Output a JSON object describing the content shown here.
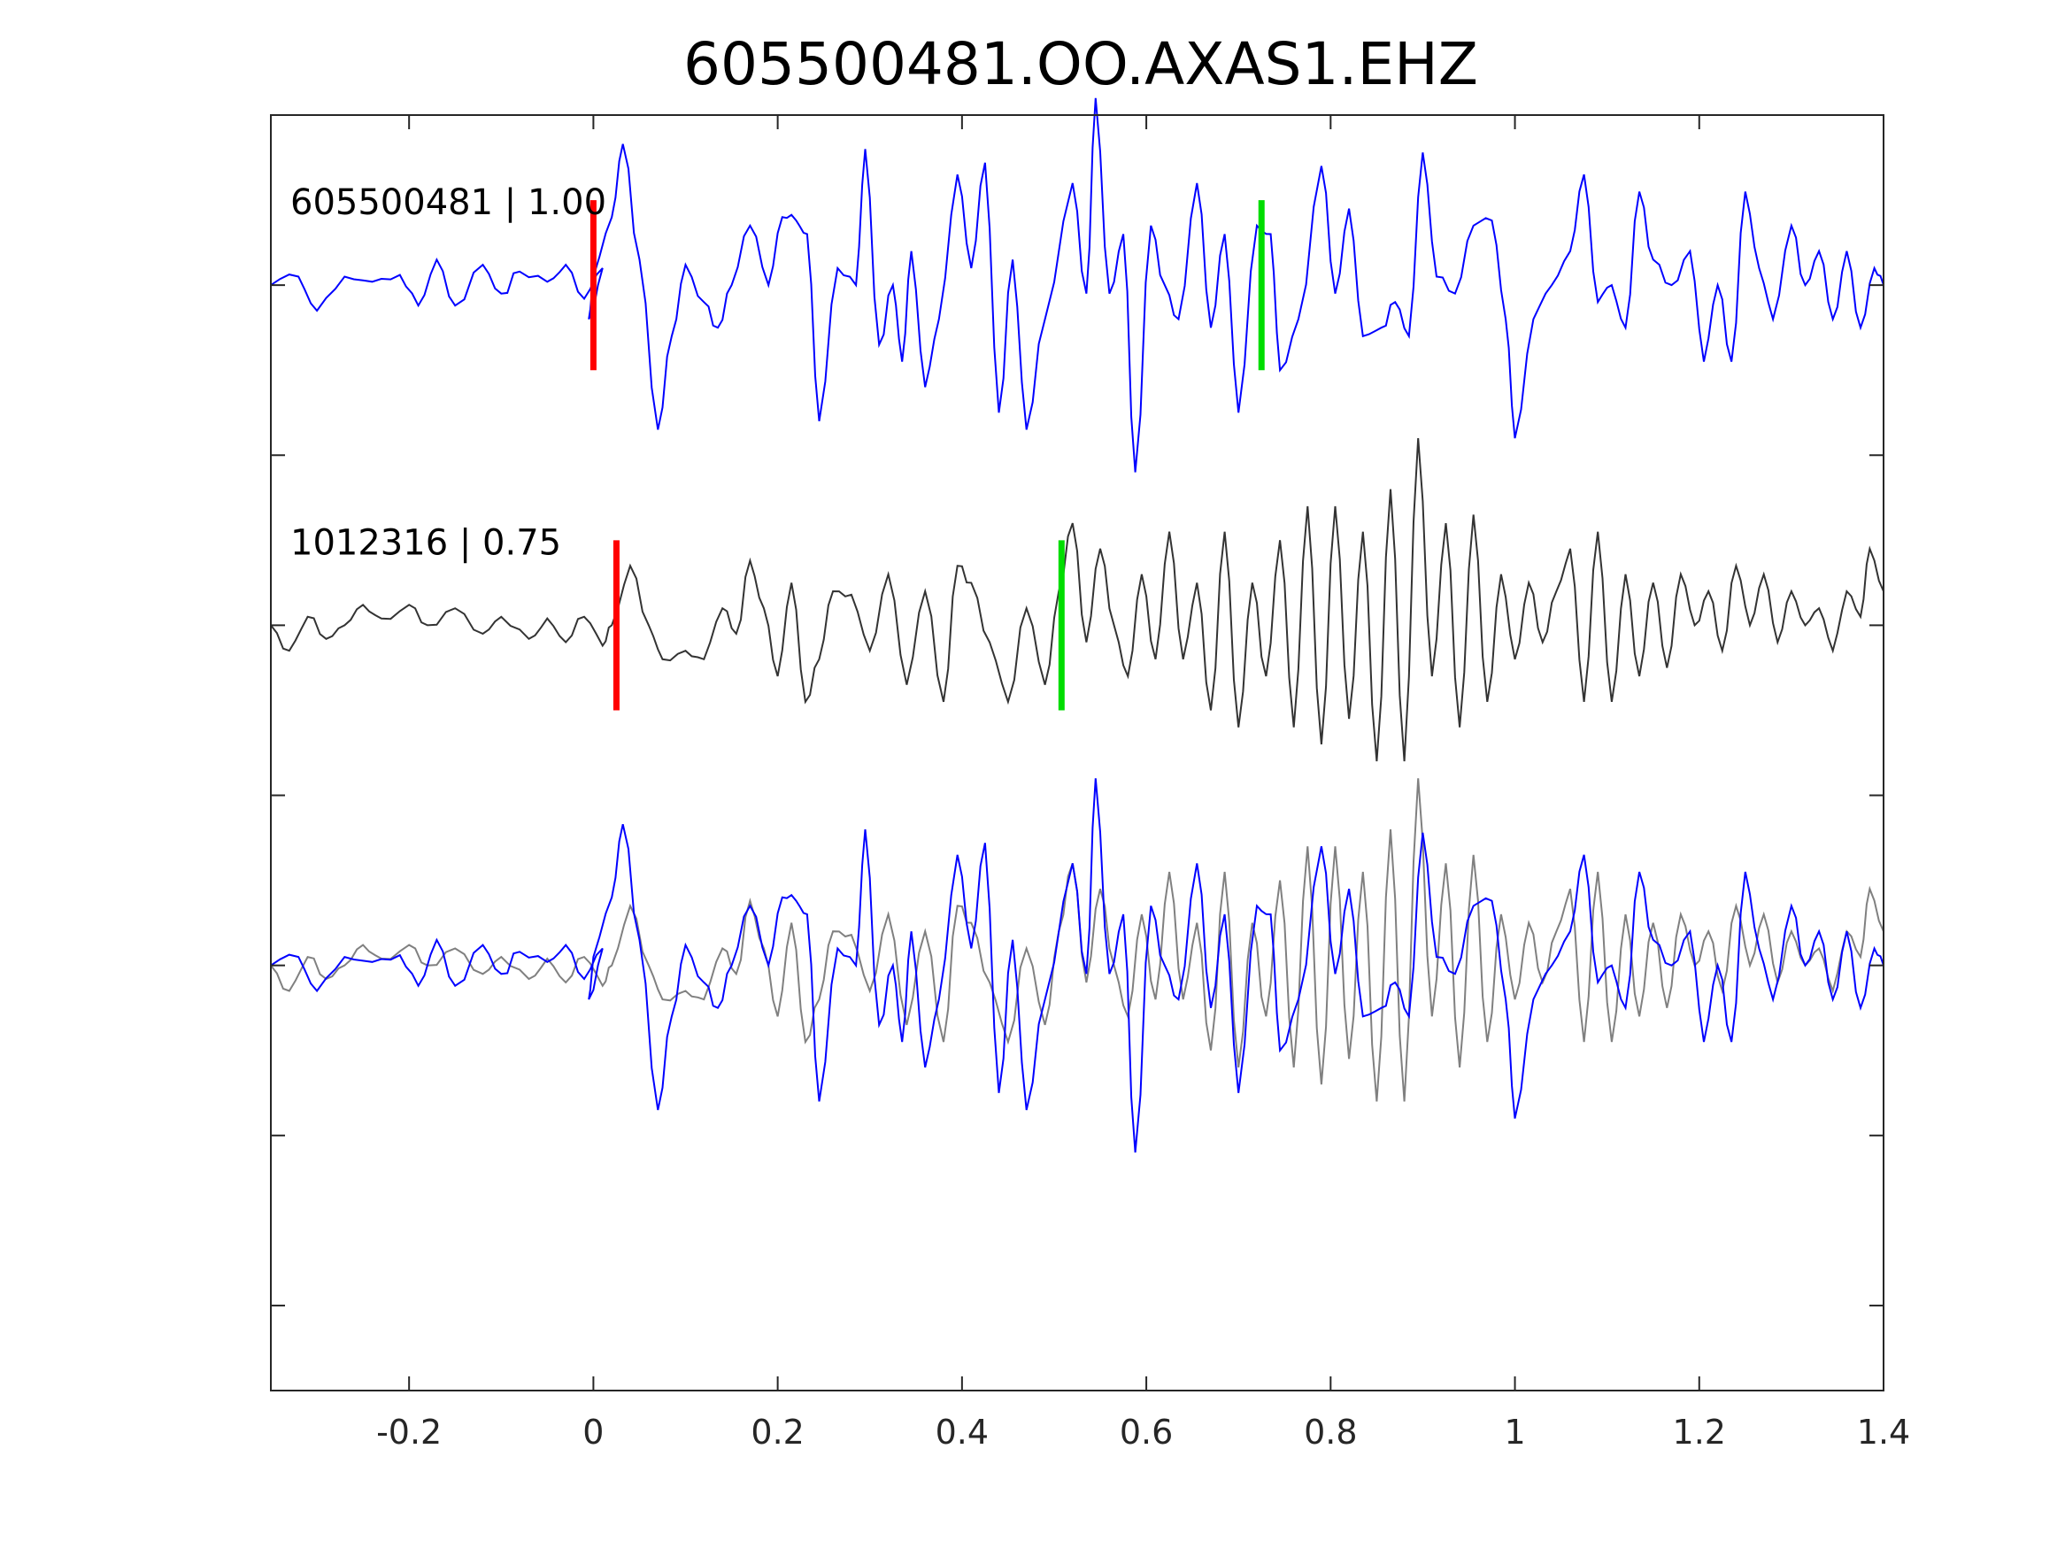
{
  "chart_data": {
    "type": "line",
    "title": "605500481.OO.AXAS1.EHZ",
    "xlabel": "",
    "ylabel": "",
    "xlim": [
      -0.35,
      1.4
    ],
    "xticks": [
      -0.2,
      0,
      0.2,
      0.4,
      0.6,
      0.8,
      1,
      1.2,
      1.4
    ],
    "xtick_labels": [
      "-0.2",
      "0",
      "0.2",
      "0.4",
      "0.6",
      "0.8",
      "1",
      "1.2",
      "1.4"
    ],
    "ylim": [
      -2.5,
      5
    ],
    "yticks": [
      -2,
      -1,
      0,
      1,
      2,
      3,
      4
    ],
    "grid": false,
    "traces": [
      {
        "label": "605500481 | 1.00",
        "offset": 4,
        "color": "#0000ff",
        "p_pick": 0.0,
        "s_pick": 0.725,
        "peaks": [
          [
            -0.35,
            0
          ],
          [
            -0.32,
            0.05
          ],
          [
            -0.3,
            -0.15
          ],
          [
            -0.27,
            0.05
          ],
          [
            -0.24,
            0.02
          ],
          [
            -0.21,
            0.06
          ],
          [
            -0.19,
            -0.12
          ],
          [
            -0.17,
            0.15
          ],
          [
            -0.15,
            -0.12
          ],
          [
            -0.12,
            0.12
          ],
          [
            -0.1,
            -0.05
          ],
          [
            -0.08,
            0.08
          ],
          [
            -0.05,
            0.02
          ],
          [
            -0.03,
            0.12
          ],
          [
            -0.01,
            -0.08
          ],
          [
            0.01,
            0.1
          ],
          [
            -0.005,
            -0.2
          ],
          [
            0.0,
            0.05
          ],
          [
            0.02,
            0.4
          ],
          [
            0.032,
            0.83
          ],
          [
            0.05,
            0.15
          ],
          [
            0.07,
            -0.85
          ],
          [
            0.085,
            -0.3
          ],
          [
            0.1,
            0.12
          ],
          [
            0.12,
            -0.1
          ],
          [
            0.135,
            -0.25
          ],
          [
            0.15,
            0.0
          ],
          [
            0.17,
            0.35
          ],
          [
            0.19,
            0.0
          ],
          [
            0.205,
            0.4
          ],
          [
            0.22,
            0.38
          ],
          [
            0.232,
            0.3
          ],
          [
            0.245,
            -0.8
          ],
          [
            0.265,
            0.1
          ],
          [
            0.285,
            0.0
          ],
          [
            0.295,
            0.8
          ],
          [
            0.31,
            -0.35
          ],
          [
            0.325,
            0.0
          ],
          [
            0.335,
            -0.45
          ],
          [
            0.345,
            0.2
          ],
          [
            0.36,
            -0.6
          ],
          [
            0.375,
            -0.2
          ],
          [
            0.395,
            0.65
          ],
          [
            0.41,
            0.1
          ],
          [
            0.425,
            0.72
          ],
          [
            0.44,
            -0.75
          ],
          [
            0.455,
            0.15
          ],
          [
            0.47,
            -0.85
          ],
          [
            0.49,
            -0.2
          ],
          [
            0.52,
            0.6
          ],
          [
            0.535,
            -0.05
          ],
          [
            0.545,
            1.1
          ],
          [
            0.56,
            -0.05
          ],
          [
            0.575,
            0.3
          ],
          [
            0.588,
            -1.1
          ],
          [
            0.605,
            0.35
          ],
          [
            0.62,
            0.0
          ],
          [
            0.635,
            -0.2
          ],
          [
            0.655,
            0.6
          ],
          [
            0.67,
            -0.25
          ],
          [
            0.685,
            0.3
          ],
          [
            0.7,
            -0.75
          ],
          [
            0.72,
            0.35
          ],
          [
            0.735,
            0.3
          ],
          [
            0.745,
            -0.5
          ],
          [
            0.765,
            -0.2
          ],
          [
            0.79,
            0.7
          ],
          [
            0.805,
            -0.05
          ],
          [
            0.82,
            0.45
          ],
          [
            0.835,
            -0.3
          ],
          [
            0.855,
            -0.25
          ],
          [
            0.87,
            -0.1
          ],
          [
            0.885,
            -0.3
          ],
          [
            0.9,
            0.78
          ],
          [
            0.915,
            0.05
          ],
          [
            0.935,
            -0.05
          ],
          [
            0.955,
            0.35
          ],
          [
            0.975,
            0.38
          ],
          [
            0.99,
            -0.2
          ],
          [
            1.0,
            -0.9
          ],
          [
            1.02,
            -0.2
          ],
          [
            1.04,
            0.0
          ],
          [
            1.06,
            0.2
          ],
          [
            1.075,
            0.65
          ],
          [
            1.09,
            -0.1
          ],
          [
            1.105,
            0.0
          ],
          [
            1.12,
            -0.25
          ],
          [
            1.135,
            0.55
          ],
          [
            1.15,
            0.15
          ],
          [
            1.17,
            0.0
          ],
          [
            1.19,
            0.2
          ],
          [
            1.205,
            -0.45
          ],
          [
            1.22,
            0.0
          ],
          [
            1.235,
            -0.45
          ],
          [
            1.25,
            0.55
          ],
          [
            1.265,
            0.1
          ],
          [
            1.28,
            -0.2
          ],
          [
            1.3,
            0.35
          ],
          [
            1.315,
            0.0
          ],
          [
            1.33,
            0.2
          ],
          [
            1.345,
            -0.2
          ],
          [
            1.36,
            0.2
          ],
          [
            1.375,
            -0.25
          ],
          [
            1.39,
            0.1
          ],
          [
            1.4,
            0.0
          ]
        ]
      },
      {
        "label": "1012316 | 0.75",
        "offset": 2,
        "color": "#333333",
        "p_pick": 0.025,
        "s_pick": 0.508,
        "peaks": [
          [
            -0.35,
            0
          ],
          [
            -0.33,
            -0.15
          ],
          [
            -0.31,
            0.05
          ],
          [
            -0.29,
            -0.08
          ],
          [
            -0.27,
            0.0
          ],
          [
            -0.25,
            0.12
          ],
          [
            -0.23,
            0.04
          ],
          [
            -0.2,
            0.12
          ],
          [
            -0.18,
            0.0
          ],
          [
            -0.15,
            0.1
          ],
          [
            -0.12,
            -0.05
          ],
          [
            -0.1,
            0.05
          ],
          [
            -0.07,
            -0.08
          ],
          [
            -0.05,
            0.04
          ],
          [
            -0.03,
            -0.1
          ],
          [
            -0.01,
            0.05
          ],
          [
            0.01,
            -0.12
          ],
          [
            0.02,
            0.0
          ],
          [
            0.04,
            0.35
          ],
          [
            0.06,
            0.0
          ],
          [
            0.075,
            -0.2
          ],
          [
            0.1,
            -0.15
          ],
          [
            0.12,
            -0.2
          ],
          [
            0.14,
            0.1
          ],
          [
            0.155,
            -0.05
          ],
          [
            0.17,
            0.38
          ],
          [
            0.185,
            0.1
          ],
          [
            0.2,
            -0.3
          ],
          [
            0.215,
            0.25
          ],
          [
            0.23,
            -0.45
          ],
          [
            0.245,
            -0.2
          ],
          [
            0.26,
            0.2
          ],
          [
            0.28,
            0.18
          ],
          [
            0.3,
            -0.15
          ],
          [
            0.32,
            0.3
          ],
          [
            0.34,
            -0.35
          ],
          [
            0.36,
            0.2
          ],
          [
            0.38,
            -0.45
          ],
          [
            0.395,
            0.35
          ],
          [
            0.41,
            0.25
          ],
          [
            0.43,
            -0.1
          ],
          [
            0.45,
            -0.45
          ],
          [
            0.47,
            0.1
          ],
          [
            0.49,
            -0.35
          ],
          [
            0.505,
            0.2
          ],
          [
            0.52,
            0.6
          ],
          [
            0.535,
            -0.1
          ],
          [
            0.55,
            0.45
          ],
          [
            0.565,
            0.0
          ],
          [
            0.58,
            -0.3
          ],
          [
            0.595,
            0.3
          ],
          [
            0.61,
            -0.2
          ],
          [
            0.625,
            0.55
          ],
          [
            0.64,
            -0.2
          ],
          [
            0.655,
            0.25
          ],
          [
            0.67,
            -0.5
          ],
          [
            0.685,
            0.55
          ],
          [
            0.7,
            -0.6
          ],
          [
            0.715,
            0.25
          ],
          [
            0.73,
            -0.3
          ],
          [
            0.745,
            0.5
          ],
          [
            0.76,
            -0.6
          ],
          [
            0.775,
            0.7
          ],
          [
            0.79,
            -0.7
          ],
          [
            0.805,
            0.7
          ],
          [
            0.82,
            -0.55
          ],
          [
            0.835,
            0.55
          ],
          [
            0.85,
            -0.8
          ],
          [
            0.865,
            0.8
          ],
          [
            0.88,
            -0.8
          ],
          [
            0.895,
            1.1
          ],
          [
            0.91,
            -0.3
          ],
          [
            0.925,
            0.6
          ],
          [
            0.94,
            -0.6
          ],
          [
            0.955,
            0.65
          ],
          [
            0.97,
            -0.45
          ],
          [
            0.985,
            0.3
          ],
          [
            1.0,
            -0.2
          ],
          [
            1.015,
            0.25
          ],
          [
            1.03,
            -0.1
          ],
          [
            1.045,
            0.2
          ],
          [
            1.06,
            0.45
          ],
          [
            1.075,
            -0.45
          ],
          [
            1.09,
            0.55
          ],
          [
            1.105,
            -0.45
          ],
          [
            1.12,
            0.3
          ],
          [
            1.135,
            -0.3
          ],
          [
            1.15,
            0.25
          ],
          [
            1.165,
            -0.25
          ],
          [
            1.18,
            0.3
          ],
          [
            1.195,
            0.0
          ],
          [
            1.21,
            0.2
          ],
          [
            1.225,
            -0.15
          ],
          [
            1.24,
            0.35
          ],
          [
            1.255,
            0.0
          ],
          [
            1.27,
            0.3
          ],
          [
            1.285,
            -0.1
          ],
          [
            1.3,
            0.2
          ],
          [
            1.315,
            0.0
          ],
          [
            1.33,
            0.1
          ],
          [
            1.345,
            -0.15
          ],
          [
            1.36,
            0.2
          ],
          [
            1.375,
            0.05
          ],
          [
            1.385,
            0.45
          ],
          [
            1.4,
            0.2
          ]
        ]
      },
      {
        "label": "",
        "offset": 0,
        "overlay": true,
        "colors": [
          "#0000ff",
          "#808080"
        ]
      }
    ],
    "colors": {
      "p_pick": "#ff0000",
      "s_pick": "#00dd00",
      "axes": "#262626"
    }
  }
}
